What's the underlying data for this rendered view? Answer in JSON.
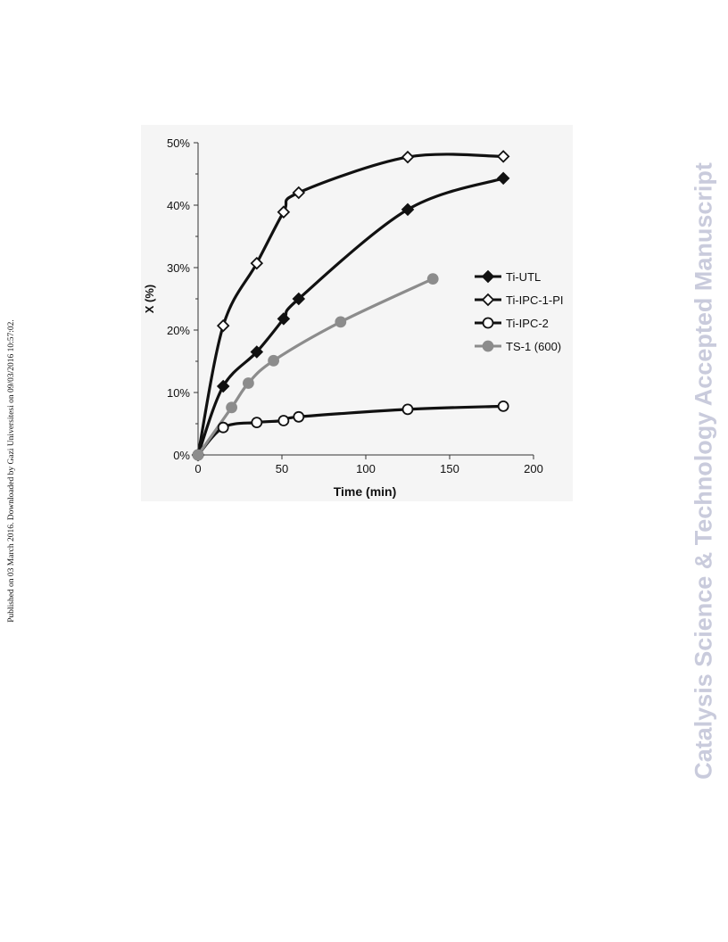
{
  "page": {
    "side_note": "Published on 03 March 2016. Downloaded by Gazi Universitesi on 09/03/2016 10:57:02.",
    "watermark": "Catalysis Science & Technology Accepted Manuscript"
  },
  "chart_data": {
    "type": "scatter",
    "title": "",
    "xlabel": "Time (min)",
    "ylabel": "X (%)",
    "xlim": [
      0,
      200
    ],
    "ylim": [
      0,
      50
    ],
    "x_ticks": [
      0,
      50,
      100,
      150,
      200
    ],
    "y_ticks": [
      0,
      10,
      20,
      30,
      40,
      50
    ],
    "y_tick_labels": [
      "0%",
      "10%",
      "20%",
      "30%",
      "40%",
      "50%"
    ],
    "grid": false,
    "legend_position": "right-middle",
    "series": [
      {
        "name": "Ti-UTL",
        "marker": "filled-diamond",
        "color": "#111111",
        "points": [
          [
            0,
            0
          ],
          [
            15,
            11
          ],
          [
            35,
            16.5
          ],
          [
            51,
            21.8
          ],
          [
            60,
            25
          ],
          [
            125,
            39.3
          ],
          [
            182,
            44.3
          ]
        ]
      },
      {
        "name": "Ti-IPC-1-PI",
        "marker": "open-diamond",
        "color": "#111111",
        "points": [
          [
            0,
            0
          ],
          [
            15,
            20.7
          ],
          [
            35,
            30.7
          ],
          [
            51,
            38.9
          ],
          [
            60,
            42
          ],
          [
            125,
            47.7
          ],
          [
            182,
            47.8
          ]
        ]
      },
      {
        "name": "Ti-IPC-2",
        "marker": "open-circle",
        "color": "#111111",
        "points": [
          [
            0,
            0
          ],
          [
            15,
            4.4
          ],
          [
            35,
            5.2
          ],
          [
            51,
            5.5
          ],
          [
            60,
            6.1
          ],
          [
            125,
            7.3
          ],
          [
            182,
            7.8
          ]
        ]
      },
      {
        "name": "TS-1 (600)",
        "marker": "filled-circle",
        "color": "#8c8c8c",
        "points": [
          [
            0,
            0
          ],
          [
            20,
            7.6
          ],
          [
            30,
            11.5
          ],
          [
            45,
            15.1
          ],
          [
            85,
            21.3
          ],
          [
            140,
            28.2
          ]
        ]
      }
    ]
  }
}
